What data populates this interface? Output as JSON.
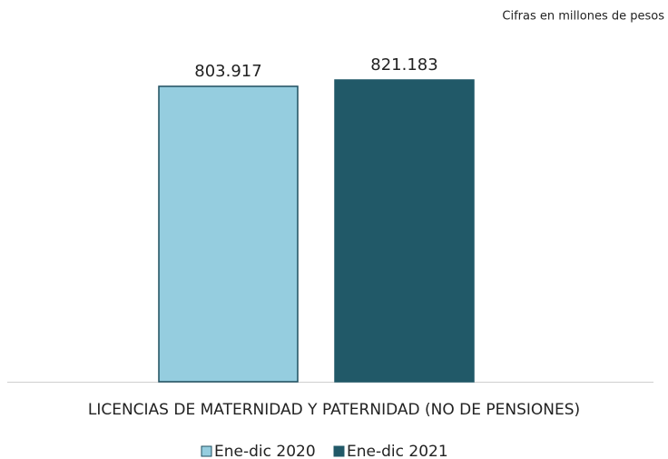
{
  "chart_data": {
    "type": "bar",
    "subtitle": "Cifras en millones de pesos",
    "categories": [
      "LICENCIAS DE MATERNIDAD Y PATERNIDAD (NO DE PENSIONES)"
    ],
    "series": [
      {
        "name": "Ene-dic 2020",
        "color": "#95cddf",
        "values": [
          803917
        ],
        "value_labels": [
          "803.917"
        ]
      },
      {
        "name": "Ene-dic 2021",
        "color": "#215968",
        "values": [
          821183
        ],
        "value_labels": [
          "821.183"
        ]
      }
    ]
  }
}
